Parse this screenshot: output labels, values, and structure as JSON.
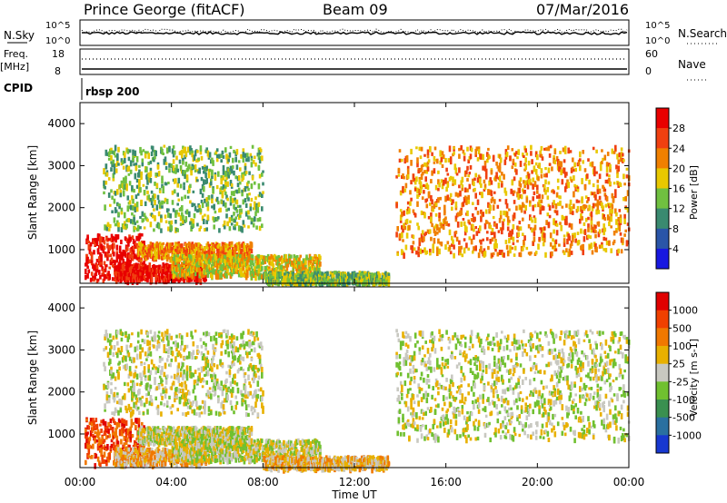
{
  "header": {
    "station": "Prince George (fitACF)",
    "beam": "Beam 09",
    "date": "07/Mar/2016"
  },
  "top_strip": {
    "nsky_label": "N.Sky",
    "nsky_ticks": [
      "10^5",
      "10^0"
    ],
    "nsearch_label": "N.Search",
    "nsearch_ticks": [
      "10^5",
      "10^0"
    ],
    "freq_label": "Freq.",
    "freq_unit": "[MHz]",
    "freq_ticks": [
      "18",
      "8"
    ],
    "nave_label": "Nave",
    "nave_ticks": [
      "60",
      "0"
    ],
    "cpid_label": "CPID",
    "cpid_value": "rbsp 200"
  },
  "chart_data": [
    {
      "type": "heatmap",
      "name": "power",
      "xlabel": "Time UT",
      "ylabel": "Slant Range [km]",
      "xlim": [
        0,
        24
      ],
      "ylim": [
        200,
        4500
      ],
      "yticks": [
        1000,
        2000,
        3000,
        4000
      ],
      "colorbar": {
        "label": "Power [dB]",
        "ticks": [
          "4",
          "8",
          "12",
          "16",
          "20",
          "24",
          "28"
        ],
        "colors": [
          "#1818e0",
          "#2a55a8",
          "#3a8a70",
          "#70c040",
          "#e8c800",
          "#f08000",
          "#f04010",
          "#e80000"
        ]
      },
      "bands": [
        {
          "t": [
            0.2,
            2.8
          ],
          "r": [
            300,
            1400
          ],
          "level": 7
        },
        {
          "t": [
            1.5,
            5.5
          ],
          "r": [
            300,
            700
          ],
          "level": 7
        },
        {
          "t": [
            2.5,
            7.5
          ],
          "r": [
            800,
            1200
          ],
          "level": 5
        },
        {
          "t": [
            1.0,
            8.0
          ],
          "r": [
            1500,
            3500
          ],
          "level": 3
        },
        {
          "t": [
            4.0,
            10.5
          ],
          "r": [
            400,
            900
          ],
          "level": 4
        },
        {
          "t": [
            8.0,
            13.5
          ],
          "r": [
            200,
            500
          ],
          "level": 3
        },
        {
          "t": [
            13.8,
            24.0
          ],
          "r": [
            900,
            3500
          ],
          "level": 5
        }
      ]
    },
    {
      "type": "heatmap",
      "name": "velocity",
      "xlabel": "Time UT",
      "ylabel": "Slant Range [km]",
      "xlim": [
        0,
        24
      ],
      "ylim": [
        200,
        4500
      ],
      "yticks": [
        1000,
        2000,
        3000,
        4000
      ],
      "colorbar": {
        "label": "Velocity [m s-1]",
        "ticks": [
          "1000",
          "500",
          "100",
          "25",
          "-25",
          "-100",
          "-500",
          "-1000"
        ],
        "colors": [
          "#1838d0",
          "#2a70a0",
          "#3a9050",
          "#70c030",
          "#c8c8c0",
          "#e8b000",
          "#f07800",
          "#f04000",
          "#e00000"
        ]
      },
      "bands": [
        {
          "t": [
            0.2,
            2.8
          ],
          "r": [
            300,
            1400
          ],
          "level": 7
        },
        {
          "t": [
            1.5,
            5.5
          ],
          "r": [
            300,
            700
          ],
          "level": 5
        },
        {
          "t": [
            2.5,
            7.5
          ],
          "r": [
            800,
            1200
          ],
          "level": 4
        },
        {
          "t": [
            1.0,
            8.0
          ],
          "r": [
            1500,
            3500
          ],
          "level": 4
        },
        {
          "t": [
            4.0,
            10.5
          ],
          "r": [
            400,
            900
          ],
          "level": 4
        },
        {
          "t": [
            8.0,
            13.5
          ],
          "r": [
            200,
            500
          ],
          "level": 5
        },
        {
          "t": [
            13.8,
            24.0
          ],
          "r": [
            900,
            3500
          ],
          "level": 4
        }
      ]
    }
  ],
  "time_axis": {
    "title": "Time UT",
    "ticks": [
      "00:00",
      "04:00",
      "08:00",
      "12:00",
      "16:00",
      "20:00",
      "00:00"
    ]
  }
}
